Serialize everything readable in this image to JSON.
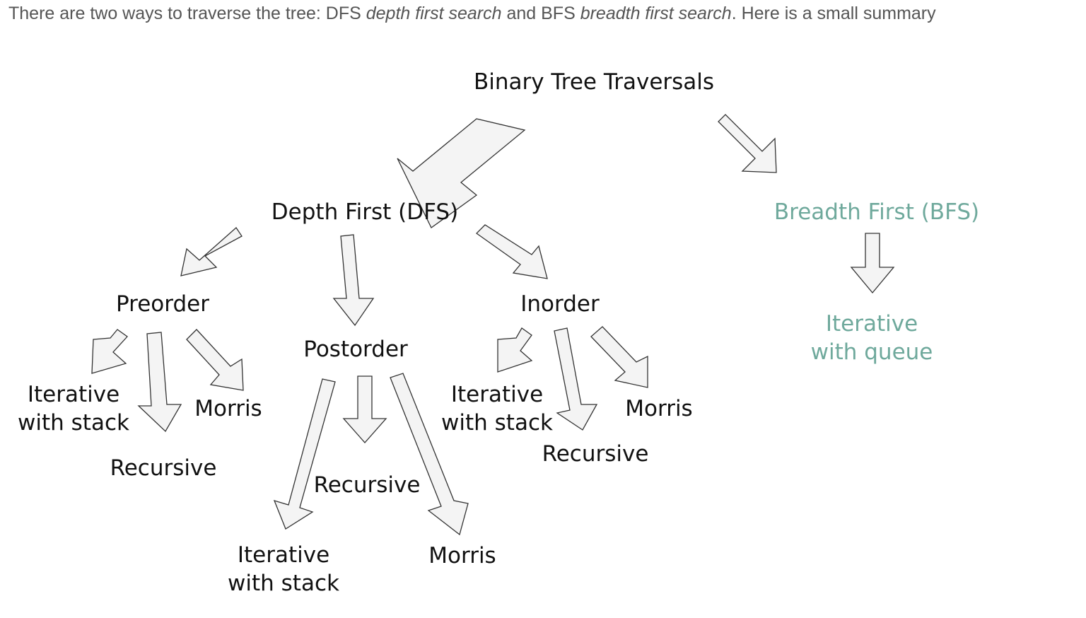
{
  "intro": {
    "part1": "There are two ways to traverse the tree: DFS ",
    "dfs_term": "depth first search",
    "part2": " and BFS ",
    "bfs_term": "breadth first search",
    "part3": ". Here is a small summary"
  },
  "diagram": {
    "colors": {
      "text": "#111111",
      "accent": "#6fa99c",
      "arrow_fill": "#f4f4f4",
      "arrow_stroke": "#333333"
    },
    "root": "Binary Tree Traversals",
    "dfs": {
      "label": "Depth First (DFS)",
      "preorder": {
        "label": "Preorder",
        "iterative": [
          "Iterative",
          "with stack"
        ],
        "recursive": "Recursive",
        "morris": "Morris"
      },
      "postorder": {
        "label": "Postorder",
        "iterative": [
          "Iterative",
          "with stack"
        ],
        "recursive": "Recursive",
        "morris": "Morris"
      },
      "inorder": {
        "label": "Inorder",
        "iterative": [
          "Iterative",
          "with stack"
        ],
        "recursive": "Recursive",
        "morris": "Morris"
      }
    },
    "bfs": {
      "label": "Breadth First (BFS)",
      "iterative": [
        "Iterative",
        "with queue"
      ]
    }
  }
}
